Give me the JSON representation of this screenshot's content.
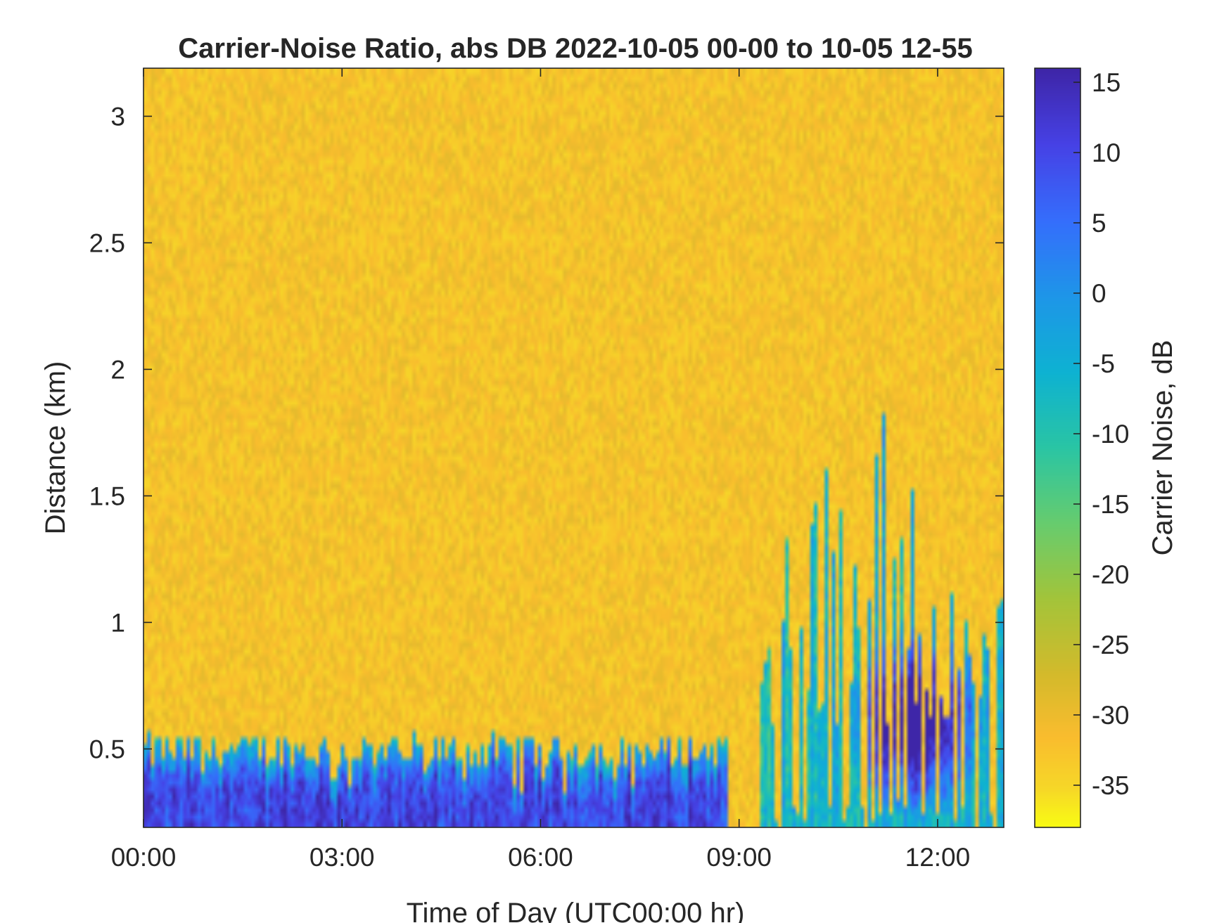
{
  "chart_data": {
    "type": "heatmap",
    "title": "Carrier-Noise Ratio, abs DB 2022-10-05 00-00 to 10-05 12-55",
    "xlabel": "Time of Day (UTC00:00 hr)",
    "ylabel": "Distance (km)",
    "colorbar_label": "Carrier Noise, dB",
    "x_range": [
      "00:00",
      "13:00"
    ],
    "y_range": [
      0.19,
      3.19
    ],
    "x_ticks": [
      "00:00",
      "03:00",
      "06:00",
      "09:00",
      "12:00"
    ],
    "y_ticks": [
      0.5,
      1,
      1.5,
      2,
      2.5,
      3
    ],
    "y_tick_labels": [
      "0.5",
      "1",
      "1.5",
      "2",
      "2.5",
      "3"
    ],
    "colorbar_range": [
      -38,
      16
    ],
    "colorbar_ticks": [
      -35,
      -30,
      -25,
      -20,
      -15,
      -10,
      -5,
      0,
      5,
      10,
      15
    ],
    "colorbar_tick_labels": [
      "-35",
      "-30",
      "-25",
      "-20",
      "-15",
      "-10",
      "-5",
      "0",
      "5",
      "10",
      "15"
    ],
    "colormap": "parula",
    "background_value_db": -32,
    "grid": false,
    "features": [
      {
        "description": "near-surface signal layer",
        "time_range": [
          "00:00",
          "08:50"
        ],
        "top_distance_km": [
          0.35,
          0.56
        ],
        "value_db": [
          -15,
          10
        ]
      },
      {
        "description": "afternoon plumes",
        "time_range": [
          "09:20",
          "13:00"
        ],
        "top_distance_km": [
          0.6,
          1.87
        ],
        "value_db": [
          -20,
          15
        ]
      },
      {
        "description": "strongest return",
        "time": "11:40",
        "distance_km": 0.62,
        "value_db": 14
      }
    ]
  },
  "colors": {
    "background_yellow": "#F9C02E",
    "strong_signal": "#3E26A8",
    "axis": "#262626"
  }
}
